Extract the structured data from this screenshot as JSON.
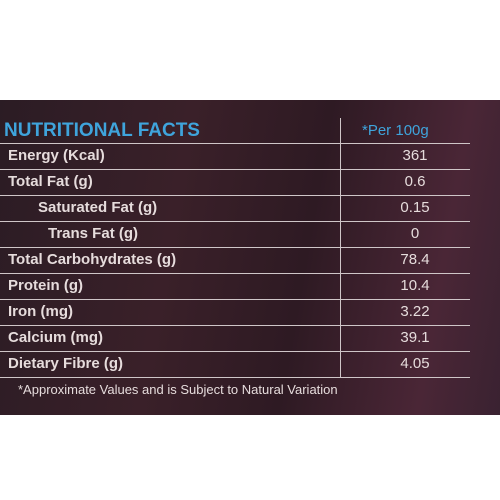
{
  "header": {
    "title": "NUTRITIONAL FACTS",
    "per": "*Per 100g"
  },
  "table": {
    "rows": [
      [
        "Energy (Kcal)",
        "361"
      ],
      [
        "Total Fat (g)",
        "0.6"
      ],
      [
        "Saturated Fat (g)",
        "0.15"
      ],
      [
        "Trans Fat (g)",
        "0"
      ],
      [
        "Total Carbohydrates (g)",
        "78.4"
      ],
      [
        "Protein (g)",
        "10.4"
      ],
      [
        "Iron (mg)",
        "3.22"
      ],
      [
        "Calcium (mg)",
        "39.1"
      ],
      [
        "Dietary Fibre (g)",
        "4.05"
      ]
    ]
  },
  "footnote": "*Approximate Values and is Subject to Natural Variation"
}
